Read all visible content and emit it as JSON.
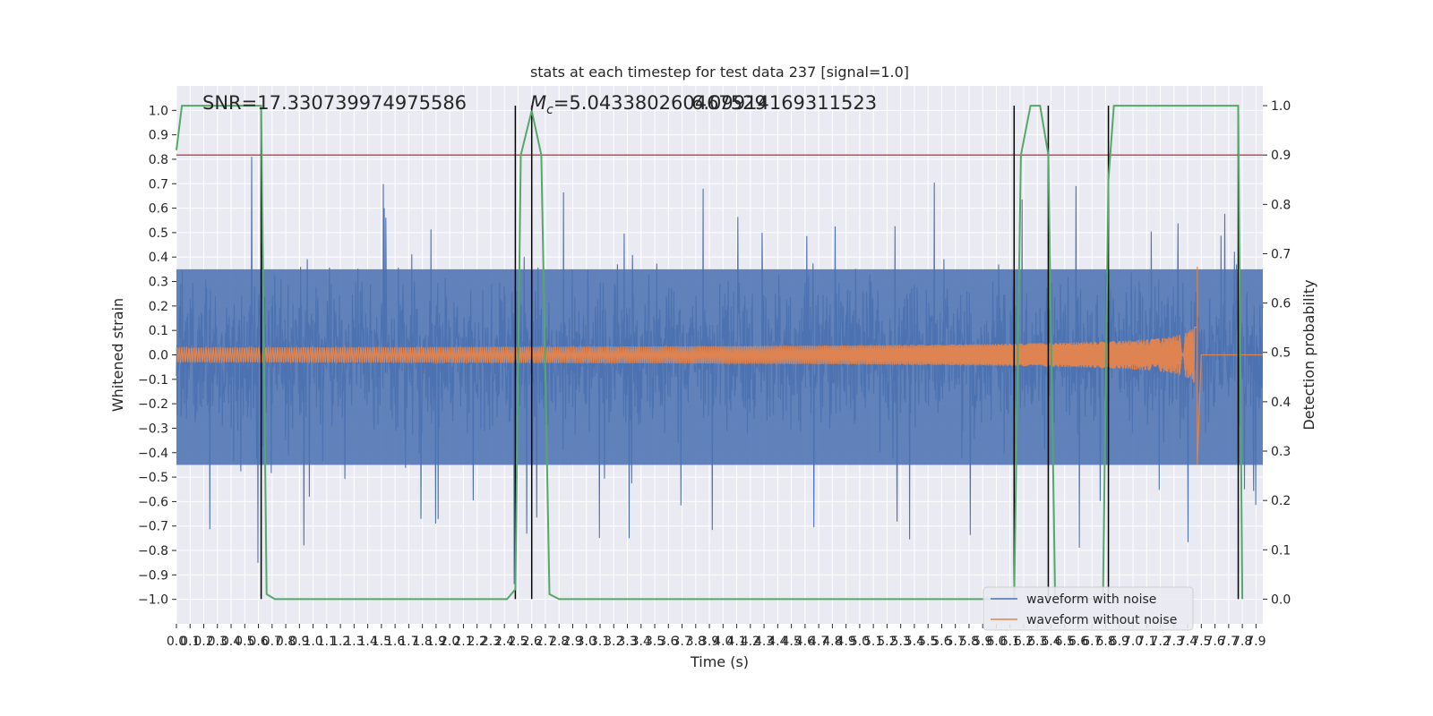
{
  "colors": {
    "background": "#eaeaf2",
    "grid": "#ffffff",
    "noise_series": "#4c72b0",
    "clean_series": "#dd8452",
    "probability_series": "#55a868",
    "threshold_line": "#c44e52",
    "segment_markers": "#000000"
  },
  "chart_data": {
    "type": "line",
    "title": "stats at each timestep for test data 237 [signal=1.0]",
    "xlabel": "Time (s)",
    "ylabel": "Whitened strain",
    "y2label": "Detection probability",
    "annotations": {
      "snr": "SNR=17.330739974975586",
      "mc_symbol": "M",
      "mc_sub": "c",
      "mc_value": "=5.043380260467529",
      "mc_overlap": "6.09914169311523"
    },
    "xlim": [
      0,
      7.95
    ],
    "ylim": [
      -1.1,
      1.1
    ],
    "y2lim": [
      -0.05,
      1.04
    ],
    "grid": true,
    "x_ticks": [
      "0.0",
      "0.1",
      "0.2",
      "0.3",
      "0.4",
      "0.5",
      "0.6",
      "0.7",
      "0.8",
      "0.9",
      "1.0",
      "1.1",
      "1.2",
      "1.3",
      "1.4",
      "1.5",
      "1.6",
      "1.7",
      "1.8",
      "1.9",
      "2.0",
      "2.1",
      "2.2",
      "2.3",
      "2.4",
      "2.5",
      "2.6",
      "2.7",
      "2.8",
      "2.9",
      "3.0",
      "3.1",
      "3.2",
      "3.3",
      "3.4",
      "3.5",
      "3.6",
      "3.7",
      "3.8",
      "3.9",
      "4.0",
      "4.1",
      "4.2",
      "4.3",
      "4.4",
      "4.5",
      "4.6",
      "4.7",
      "4.8",
      "4.9",
      "5.0",
      "5.1",
      "5.2",
      "5.3",
      "5.4",
      "5.5",
      "5.6",
      "5.7",
      "5.8",
      "5.9",
      "6.0",
      "6.1",
      "6.2",
      "6.3",
      "6.4",
      "6.5",
      "6.6",
      "6.7",
      "6.8",
      "6.9",
      "7.0",
      "7.1",
      "7.2",
      "7.3",
      "7.4",
      "7.5",
      "7.6",
      "7.7",
      "7.8",
      "7.9"
    ],
    "y_ticks": [
      "−1.0",
      "−0.9",
      "−0.8",
      "−0.7",
      "−0.6",
      "−0.5",
      "−0.4",
      "−0.3",
      "−0.2",
      "−0.1",
      "0.0",
      "0.1",
      "0.2",
      "0.3",
      "0.4",
      "0.5",
      "0.6",
      "0.7",
      "0.8",
      "0.9",
      "1.0"
    ],
    "y2_ticks": [
      "0.0",
      "0.1",
      "0.2",
      "0.3",
      "0.4",
      "0.5",
      "0.6",
      "0.7",
      "0.8",
      "0.9",
      "1.0"
    ],
    "threshold": 0.9,
    "vertical_markers": [
      0.62,
      2.48,
      2.6,
      6.13,
      6.38,
      6.82,
      7.77
    ],
    "series": [
      {
        "name": "waveform with noise",
        "note": "dense random noise, envelope ~±0.45 with spikes to ±1.0",
        "envelope": 0.45
      },
      {
        "name": "waveform without noise",
        "note": "chirp: amplitude 0.03 at t=0 rising to ~0.4 at merger t≈7.47 s, zero after",
        "merger_time": 7.47,
        "merger_amplitude_pos": 0.36,
        "merger_amplitude_neg": -0.45
      },
      {
        "name": "detection probability",
        "x": [
          0,
          0.04,
          0.11,
          0.62,
          0.66,
          0.72,
          2.42,
          2.48,
          2.52,
          2.6,
          2.67,
          2.73,
          2.8,
          6.13,
          6.18,
          6.25,
          6.32,
          6.38,
          6.43,
          6.78,
          6.82,
          6.86,
          7.77,
          7.8
        ],
        "y": [
          0.91,
          1.0,
          1.0,
          1.0,
          0.01,
          0.0,
          0.0,
          0.02,
          0.9,
          0.99,
          0.9,
          0.01,
          0.0,
          0.0,
          0.9,
          1.0,
          1.0,
          0.9,
          0.0,
          0.0,
          0.85,
          1.0,
          1.0,
          0.0
        ]
      }
    ],
    "legend": {
      "placement": "lower-right",
      "entries": [
        "waveform with noise",
        "waveform without noise"
      ]
    }
  }
}
